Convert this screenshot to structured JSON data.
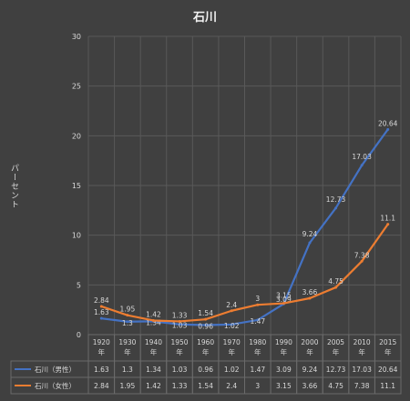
{
  "chart_data": {
    "type": "line",
    "title": "石川",
    "ylabel": "パーセント",
    "xlabel": "",
    "categories": [
      "1920\n年",
      "1930\n年",
      "1940\n年",
      "1950\n年",
      "1960\n年",
      "1970\n年",
      "1980\n年",
      "1990\n年",
      "2000\n年",
      "2005\n年",
      "2010\n年",
      "2015\n年"
    ],
    "ylim": [
      0,
      30
    ],
    "yticks": [
      0,
      5,
      10,
      15,
      20,
      25,
      30
    ],
    "grid": true,
    "legend": "data-table",
    "series": [
      {
        "name": "石川（男性）",
        "color": "#4472c4",
        "values": [
          1.63,
          1.3,
          1.34,
          1.03,
          0.96,
          1.02,
          1.47,
          3.09,
          9.24,
          12.73,
          17.03,
          20.64
        ]
      },
      {
        "name": "石川（女性）",
        "color": "#ed7d31",
        "values": [
          2.84,
          1.95,
          1.42,
          1.33,
          1.54,
          2.4,
          3,
          3.15,
          3.66,
          4.75,
          7.38,
          11.1
        ]
      }
    ]
  }
}
